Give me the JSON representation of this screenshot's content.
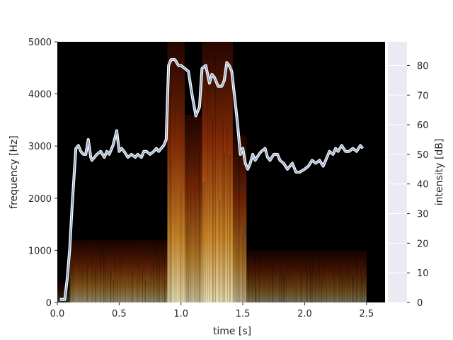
{
  "chart_data": {
    "type": "heatmap",
    "title": "",
    "xlabel": "time [s]",
    "ylabel": "frequency [Hz]",
    "y2label": "intensity [dB]",
    "xlim": [
      0,
      2.65
    ],
    "ylim": [
      0,
      5000
    ],
    "y2lim": [
      0,
      88
    ],
    "x_ticks": [
      0.0,
      0.5,
      1.0,
      1.5,
      2.0,
      2.5
    ],
    "x_tick_labels": [
      "0.0",
      "0.5",
      "1.0",
      "1.5",
      "2.0",
      "2.5"
    ],
    "y_ticks": [
      0,
      1000,
      2000,
      3000,
      4000,
      5000
    ],
    "y_tick_labels": [
      "0",
      "1000",
      "2000",
      "3000",
      "4000",
      "5000"
    ],
    "y2_ticks": [
      0,
      10,
      20,
      30,
      40,
      50,
      60,
      70,
      80
    ],
    "y2_tick_labels": [
      "0",
      "10",
      "20",
      "30",
      "40",
      "50",
      "60",
      "70",
      "80"
    ],
    "spectrogram_extent": {
      "t": [
        0.0,
        2.5
      ],
      "f": [
        0,
        5000
      ]
    },
    "spectrogram_segments": [
      {
        "t": [
          0.0,
          0.1
        ],
        "fmax": 400,
        "level": 0.2
      },
      {
        "t": [
          0.1,
          0.89
        ],
        "fmax": 1200,
        "level": 0.55
      },
      {
        "t": [
          0.89,
          1.03
        ],
        "fmax": 5000,
        "level": 0.85
      },
      {
        "t": [
          1.03,
          1.17
        ],
        "fmax": 3600,
        "level": 0.75
      },
      {
        "t": [
          1.17,
          1.42
        ],
        "fmax": 5000,
        "level": 0.9
      },
      {
        "t": [
          1.42,
          1.53
        ],
        "fmax": 3200,
        "level": 0.7
      },
      {
        "t": [
          1.53,
          2.5
        ],
        "fmax": 1000,
        "level": 0.45
      }
    ],
    "intensity_series": {
      "name": "intensity",
      "color": "#dde8f5",
      "t": [
        0.02,
        0.06,
        0.08,
        0.1,
        0.12,
        0.15,
        0.17,
        0.19,
        0.21,
        0.23,
        0.25,
        0.27,
        0.28,
        0.3,
        0.32,
        0.35,
        0.38,
        0.4,
        0.42,
        0.45,
        0.48,
        0.5,
        0.52,
        0.54,
        0.57,
        0.6,
        0.63,
        0.65,
        0.68,
        0.7,
        0.72,
        0.75,
        0.78,
        0.8,
        0.82,
        0.84,
        0.86,
        0.88,
        0.9,
        0.92,
        0.95,
        0.98,
        1.0,
        1.03,
        1.06,
        1.09,
        1.12,
        1.15,
        1.17,
        1.2,
        1.23,
        1.25,
        1.27,
        1.3,
        1.33,
        1.35,
        1.37,
        1.39,
        1.41,
        1.44,
        1.46,
        1.48,
        1.5,
        1.52,
        1.54,
        1.56,
        1.58,
        1.6,
        1.63,
        1.65,
        1.68,
        1.7,
        1.72,
        1.75,
        1.78,
        1.8,
        1.83,
        1.86,
        1.9,
        1.93,
        1.96,
        2.0,
        2.03,
        2.06,
        2.09,
        2.12,
        2.15,
        2.18,
        2.2,
        2.23,
        2.25,
        2.27,
        2.3,
        2.33,
        2.36,
        2.39,
        2.42,
        2.45,
        2.47
      ],
      "db": [
        1,
        1,
        8,
        18,
        33,
        52,
        53,
        51,
        50,
        50,
        55,
        49,
        48,
        49,
        50,
        51,
        49,
        51,
        50,
        53,
        58,
        51,
        52,
        51,
        49,
        50,
        49,
        50,
        49,
        51,
        51,
        50,
        51,
        52,
        51,
        52,
        53,
        55,
        80,
        82,
        82,
        80,
        80,
        79,
        78,
        70,
        63,
        66,
        79,
        80,
        74,
        77,
        76,
        73,
        73,
        75,
        81,
        80,
        78,
        67,
        59,
        50,
        52,
        47,
        45,
        47,
        50,
        48,
        50,
        51,
        52,
        49,
        48,
        50,
        50,
        48,
        47,
        45,
        47,
        44,
        44,
        45,
        46,
        48,
        47,
        48,
        46,
        49,
        51,
        50,
        52,
        51,
        53,
        51,
        51,
        52,
        51,
        53,
        52
      ]
    }
  }
}
